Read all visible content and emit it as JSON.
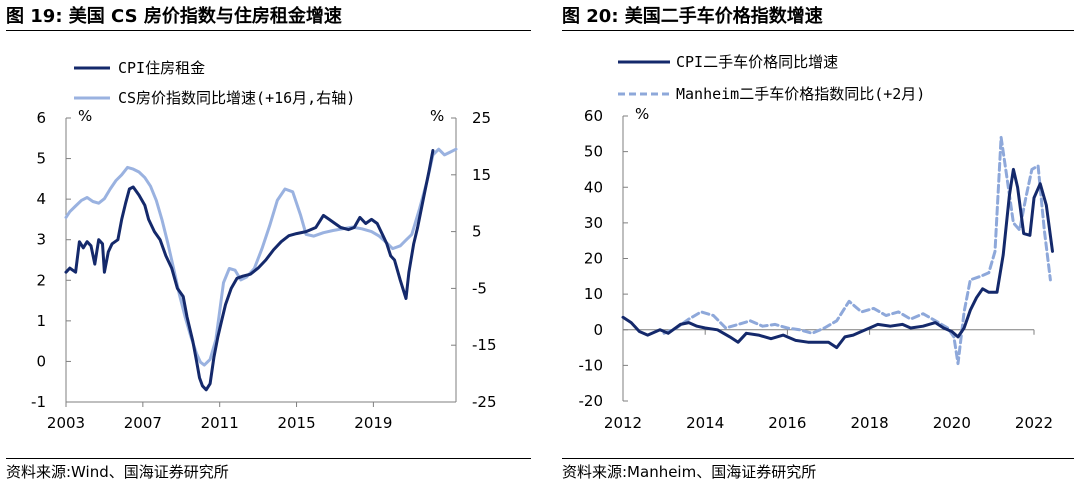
{
  "charts": [
    {
      "title": "图 19:  美国 CS 房价指数与住房租金增速",
      "source": "资料来源:Wind、国海证券研究所",
      "colors": {
        "primary": "#14296b",
        "secondary": "#9ab2e0"
      },
      "chart_data": {
        "type": "line",
        "left_axis": {
          "unit": "%",
          "ylim": [
            -1,
            6
          ],
          "ticks": [
            "6",
            "5",
            "4",
            "3",
            "2",
            "1",
            "0",
            "-1"
          ]
        },
        "right_axis": {
          "unit": "%",
          "ylim": [
            -25,
            25
          ],
          "ticks": [
            "25",
            "15",
            "5",
            "-5",
            "-15",
            "-25"
          ]
        },
        "x_ticks": [
          "2003",
          "2007",
          "2011",
          "2015",
          "2019"
        ],
        "xlim": [
          2003,
          2023.3
        ],
        "legend": [
          "CPI住房租金",
          "CS房价指数同比增速(+16月,右轴)"
        ],
        "series": [
          {
            "name": "CPI住房租金",
            "axis": "left",
            "points": [
              [
                2003.0,
                2.2
              ],
              [
                2003.2,
                2.3
              ],
              [
                2003.5,
                2.2
              ],
              [
                2003.7,
                2.95
              ],
              [
                2003.9,
                2.8
              ],
              [
                2004.1,
                2.95
              ],
              [
                2004.3,
                2.85
              ],
              [
                2004.5,
                2.4
              ],
              [
                2004.7,
                3.0
              ],
              [
                2004.9,
                2.9
              ],
              [
                2005.0,
                2.2
              ],
              [
                2005.2,
                2.7
              ],
              [
                2005.4,
                2.9
              ],
              [
                2005.7,
                3.0
              ],
              [
                2005.9,
                3.5
              ],
              [
                2006.1,
                3.9
              ],
              [
                2006.3,
                4.25
              ],
              [
                2006.5,
                4.3
              ],
              [
                2006.8,
                4.1
              ],
              [
                2007.1,
                3.85
              ],
              [
                2007.3,
                3.5
              ],
              [
                2007.6,
                3.2
              ],
              [
                2007.9,
                3.0
              ],
              [
                2008.2,
                2.6
              ],
              [
                2008.5,
                2.3
              ],
              [
                2008.8,
                1.8
              ],
              [
                2009.1,
                1.6
              ],
              [
                2009.3,
                1.1
              ],
              [
                2009.6,
                0.5
              ],
              [
                2009.8,
                0.0
              ],
              [
                2009.95,
                -0.4
              ],
              [
                2010.1,
                -0.6
              ],
              [
                2010.3,
                -0.7
              ],
              [
                2010.5,
                -0.55
              ],
              [
                2010.7,
                0.1
              ],
              [
                2010.9,
                0.6
              ],
              [
                2011.1,
                1.0
              ],
              [
                2011.3,
                1.4
              ],
              [
                2011.6,
                1.8
              ],
              [
                2011.9,
                2.05
              ],
              [
                2012.2,
                2.1
              ],
              [
                2012.6,
                2.15
              ],
              [
                2013.0,
                2.3
              ],
              [
                2013.4,
                2.5
              ],
              [
                2013.8,
                2.75
              ],
              [
                2014.2,
                2.95
              ],
              [
                2014.6,
                3.1
              ],
              [
                2015.0,
                3.15
              ],
              [
                2015.5,
                3.2
              ],
              [
                2016.0,
                3.3
              ],
              [
                2016.4,
                3.6
              ],
              [
                2016.7,
                3.5
              ],
              [
                2017.0,
                3.4
              ],
              [
                2017.3,
                3.3
              ],
              [
                2017.7,
                3.25
              ],
              [
                2018.0,
                3.3
              ],
              [
                2018.3,
                3.55
              ],
              [
                2018.6,
                3.4
              ],
              [
                2018.9,
                3.5
              ],
              [
                2019.2,
                3.4
              ],
              [
                2019.5,
                3.1
              ],
              [
                2019.7,
                2.9
              ],
              [
                2019.9,
                2.6
              ],
              [
                2020.1,
                2.5
              ],
              [
                2020.4,
                2.0
              ],
              [
                2020.7,
                1.55
              ],
              [
                2020.85,
                2.2
              ],
              [
                2021.1,
                2.9
              ],
              [
                2021.3,
                3.3
              ],
              [
                2021.6,
                4.0
              ],
              [
                2021.9,
                4.7
              ],
              [
                2022.1,
                5.2
              ]
            ]
          },
          {
            "name": "CS房价指数同比增速(+16月,右轴)",
            "axis": "right",
            "points": [
              [
                2003.0,
                7.5
              ],
              [
                2003.2,
                8.5
              ],
              [
                2003.5,
                9.5
              ],
              [
                2003.8,
                10.5
              ],
              [
                2004.1,
                11.0
              ],
              [
                2004.4,
                10.3
              ],
              [
                2004.7,
                10.0
              ],
              [
                2005.0,
                10.8
              ],
              [
                2005.3,
                12.5
              ],
              [
                2005.6,
                14.0
              ],
              [
                2005.9,
                15.0
              ],
              [
                2006.2,
                16.3
              ],
              [
                2006.5,
                16.0
              ],
              [
                2006.8,
                15.5
              ],
              [
                2007.1,
                14.5
              ],
              [
                2007.4,
                13.0
              ],
              [
                2007.7,
                10.5
              ],
              [
                2008.0,
                7.0
              ],
              [
                2008.3,
                3.0
              ],
              [
                2008.6,
                -1.5
              ],
              [
                2008.9,
                -6.0
              ],
              [
                2009.2,
                -10.0
              ],
              [
                2009.5,
                -13.5
              ],
              [
                2009.8,
                -16.5
              ],
              [
                2010.0,
                -18.0
              ],
              [
                2010.2,
                -18.5
              ],
              [
                2010.5,
                -17.5
              ],
              [
                2010.8,
                -14.0
              ],
              [
                2011.0,
                -9.0
              ],
              [
                2011.2,
                -4.0
              ],
              [
                2011.5,
                -1.5
              ],
              [
                2011.8,
                -1.8
              ],
              [
                2012.1,
                -3.5
              ],
              [
                2012.4,
                -3.0
              ],
              [
                2012.8,
                -1.5
              ],
              [
                2013.2,
                2.0
              ],
              [
                2013.6,
                6.0
              ],
              [
                2014.0,
                10.5
              ],
              [
                2014.4,
                12.5
              ],
              [
                2014.8,
                12.0
              ],
              [
                2015.2,
                8.0
              ],
              [
                2015.5,
                4.5
              ],
              [
                2015.9,
                4.2
              ],
              [
                2016.4,
                4.8
              ],
              [
                2016.9,
                5.2
              ],
              [
                2017.4,
                5.5
              ],
              [
                2017.9,
                5.8
              ],
              [
                2018.4,
                5.5
              ],
              [
                2018.9,
                5.0
              ],
              [
                2019.3,
                4.2
              ],
              [
                2019.7,
                3.0
              ],
              [
                2020.0,
                2.0
              ],
              [
                2020.4,
                2.5
              ],
              [
                2020.7,
                3.5
              ],
              [
                2021.0,
                4.5
              ],
              [
                2021.4,
                9.0
              ],
              [
                2021.8,
                14.0
              ],
              [
                2022.1,
                18.5
              ],
              [
                2022.4,
                19.5
              ],
              [
                2022.7,
                18.5
              ],
              [
                2023.0,
                19.0
              ],
              [
                2023.3,
                19.5
              ]
            ]
          }
        ]
      }
    },
    {
      "title": "图 20:  美国二手车价格指数增速",
      "source": "资料来源:Manheim、国海证券研究所",
      "colors": {
        "primary": "#14296b",
        "secondary": "#8ea8da"
      },
      "chart_data": {
        "type": "line",
        "left_axis": {
          "unit": "%",
          "ylim": [
            -20,
            60
          ],
          "ticks": [
            "60",
            "50",
            "40",
            "30",
            "20",
            "10",
            "0",
            "-10",
            "-20"
          ]
        },
        "x_ticks": [
          "2012",
          "2014",
          "2016",
          "2018",
          "2020",
          "2022"
        ],
        "xlim": [
          2012,
          2022
        ],
        "legend": [
          "CPI二手车价格同比增速",
          "Manheim二手车价格指数同比(+2月)"
        ],
        "series": [
          {
            "name": "CPI二手车价格同比增速",
            "axis": "left",
            "points": [
              [
                2012.0,
                3.5
              ],
              [
                2012.2,
                2.0
              ],
              [
                2012.4,
                -0.5
              ],
              [
                2012.6,
                -1.5
              ],
              [
                2012.9,
                0.0
              ],
              [
                2013.1,
                -1.0
              ],
              [
                2013.4,
                1.5
              ],
              [
                2013.6,
                2.0
              ],
              [
                2013.8,
                1.0
              ],
              [
                2014.0,
                0.5
              ],
              [
                2014.3,
                0.0
              ],
              [
                2014.6,
                -2.0
              ],
              [
                2014.8,
                -3.5
              ],
              [
                2015.0,
                -1.0
              ],
              [
                2015.3,
                -1.5
              ],
              [
                2015.6,
                -2.5
              ],
              [
                2015.9,
                -1.5
              ],
              [
                2016.2,
                -3.0
              ],
              [
                2016.5,
                -3.5
              ],
              [
                2016.8,
                -3.5
              ],
              [
                2017.0,
                -3.5
              ],
              [
                2017.2,
                -5.0
              ],
              [
                2017.4,
                -2.0
              ],
              [
                2017.6,
                -1.5
              ],
              [
                2017.8,
                -0.5
              ],
              [
                2018.0,
                0.5
              ],
              [
                2018.2,
                1.5
              ],
              [
                2018.5,
                1.0
              ],
              [
                2018.8,
                1.5
              ],
              [
                2019.0,
                0.5
              ],
              [
                2019.3,
                1.0
              ],
              [
                2019.6,
                2.0
              ],
              [
                2019.8,
                0.5
              ],
              [
                2020.0,
                -0.5
              ],
              [
                2020.15,
                -2.0
              ],
              [
                2020.3,
                0.5
              ],
              [
                2020.45,
                5.5
              ],
              [
                2020.6,
                9.0
              ],
              [
                2020.75,
                11.5
              ],
              [
                2020.9,
                10.5
              ],
              [
                2021.1,
                10.5
              ],
              [
                2021.25,
                21.0
              ],
              [
                2021.4,
                37.5
              ],
              [
                2021.5,
                45.0
              ],
              [
                2021.6,
                40.0
              ],
              [
                2021.75,
                27.0
              ],
              [
                2021.9,
                26.5
              ],
              [
                2022.0,
                37.0
              ],
              [
                2022.15,
                41.0
              ],
              [
                2022.3,
                35.0
              ],
              [
                2022.45,
                22.0
              ]
            ]
          },
          {
            "name": "Manheim二手车价格指数同比(+2月)",
            "axis": "left",
            "points": [
              [
                2013.0,
                -1.0
              ],
              [
                2013.3,
                0.5
              ],
              [
                2013.6,
                3.0
              ],
              [
                2013.9,
                5.0
              ],
              [
                2014.2,
                4.0
              ],
              [
                2014.5,
                0.5
              ],
              [
                2014.8,
                1.5
              ],
              [
                2015.1,
                2.5
              ],
              [
                2015.4,
                1.0
              ],
              [
                2015.7,
                1.5
              ],
              [
                2016.0,
                0.5
              ],
              [
                2016.3,
                0.0
              ],
              [
                2016.6,
                -1.0
              ],
              [
                2016.9,
                0.5
              ],
              [
                2017.2,
                2.5
              ],
              [
                2017.5,
                8.0
              ],
              [
                2017.8,
                5.0
              ],
              [
                2018.1,
                6.0
              ],
              [
                2018.4,
                4.0
              ],
              [
                2018.7,
                5.0
              ],
              [
                2019.0,
                3.0
              ],
              [
                2019.3,
                4.5
              ],
              [
                2019.6,
                2.5
              ],
              [
                2019.9,
                0.5
              ],
              [
                2020.05,
                -2.0
              ],
              [
                2020.15,
                -9.5
              ],
              [
                2020.3,
                5.0
              ],
              [
                2020.45,
                14.0
              ],
              [
                2020.7,
                15.0
              ],
              [
                2020.9,
                16.0
              ],
              [
                2021.05,
                22.0
              ],
              [
                2021.2,
                54.0
              ],
              [
                2021.35,
                42.0
              ],
              [
                2021.5,
                30.0
              ],
              [
                2021.65,
                28.0
              ],
              [
                2021.8,
                37.0
              ],
              [
                2021.95,
                45.0
              ],
              [
                2022.1,
                46.0
              ],
              [
                2022.25,
                28.0
              ],
              [
                2022.4,
                14.0
              ]
            ]
          }
        ]
      }
    }
  ]
}
